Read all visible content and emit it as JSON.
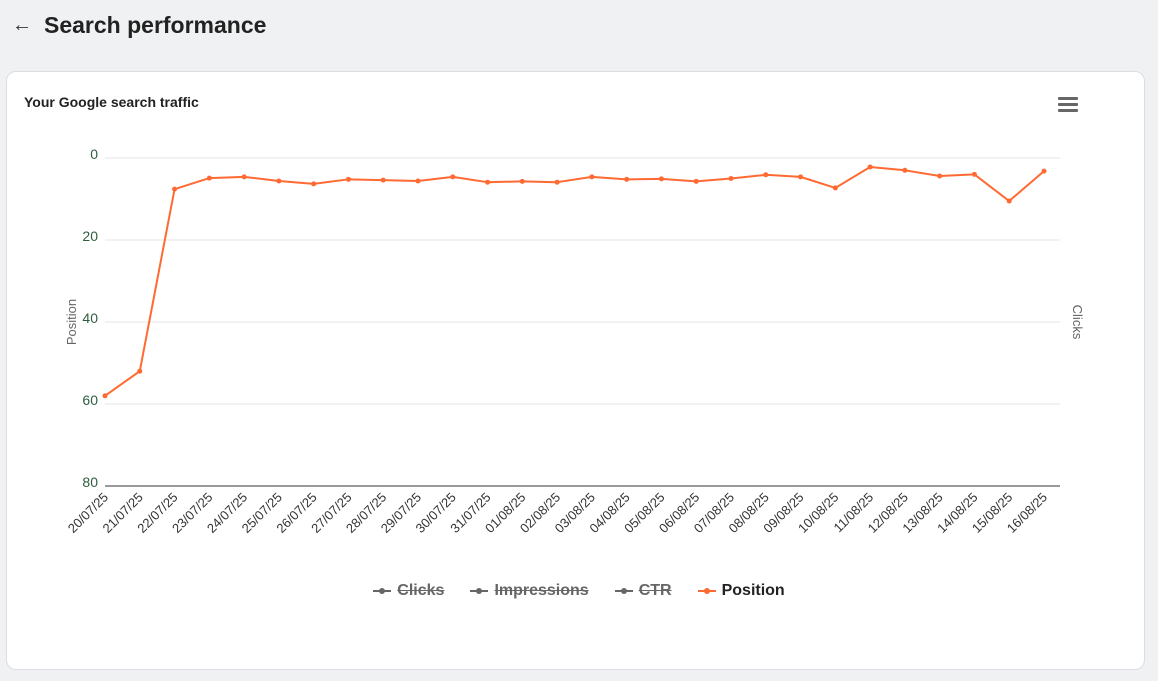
{
  "header": {
    "title": "Search performance",
    "back_icon": "arrow-left-icon"
  },
  "card": {
    "title": "Your Google search traffic"
  },
  "chart_data": {
    "type": "line",
    "title": "Your Google search traffic",
    "ylabel": "Position",
    "ylabel_right": "Clicks",
    "ylim": [
      0,
      80
    ],
    "y_reversed": true,
    "yticks": [
      "0",
      "20",
      "40",
      "60",
      "80"
    ],
    "grid": true,
    "legend_placement": "bottom",
    "categories": [
      "20/07/25",
      "21/07/25",
      "22/07/25",
      "23/07/25",
      "24/07/25",
      "25/07/25",
      "26/07/25",
      "27/07/25",
      "28/07/25",
      "29/07/25",
      "30/07/25",
      "31/07/25",
      "01/08/25",
      "02/08/25",
      "03/08/25",
      "04/08/25",
      "05/08/25",
      "06/08/25",
      "07/08/25",
      "08/08/25",
      "09/08/25",
      "10/08/25",
      "11/08/25",
      "12/08/25",
      "13/08/25",
      "14/08/25",
      "15/08/25",
      "16/08/25"
    ],
    "series": [
      {
        "name": "Clicks",
        "visible": false,
        "color": "#666666"
      },
      {
        "name": "Impressions",
        "visible": false,
        "color": "#666666"
      },
      {
        "name": "CTR",
        "visible": false,
        "color": "#666666"
      },
      {
        "name": "Position",
        "visible": true,
        "color": "#ff6a33",
        "values": [
          58,
          52,
          7.6,
          4.9,
          4.6,
          5.6,
          6.3,
          5.2,
          5.4,
          5.6,
          4.6,
          5.9,
          5.7,
          5.9,
          4.6,
          5.2,
          5.1,
          5.7,
          5.0,
          4.1,
          4.6,
          7.3,
          2.2,
          3.0,
          4.4,
          4.0,
          10.5,
          3.2
        ]
      }
    ]
  }
}
